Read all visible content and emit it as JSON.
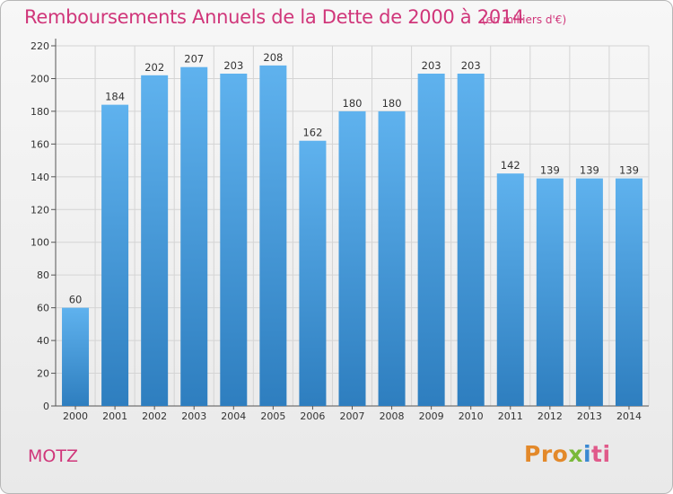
{
  "title": "Remboursements Annuels de la Dette de 2000 à 2014",
  "unit": "(en milliers d'€)",
  "commune": "MOTZ",
  "logo": {
    "p1": "Pro",
    "p2": "x",
    "p3": "i",
    "p4": "ti"
  },
  "colors": {
    "title": "#d0367a",
    "bar_top": "#5fb2ee",
    "bar_bottom": "#2e7ebf",
    "grid": "#d4d4d4"
  },
  "chart_data": {
    "type": "bar",
    "categories": [
      "2000",
      "2001",
      "2002",
      "2003",
      "2004",
      "2005",
      "2006",
      "2007",
      "2008",
      "2009",
      "2010",
      "2011",
      "2012",
      "2013",
      "2014"
    ],
    "values": [
      60,
      184,
      202,
      207,
      203,
      208,
      162,
      180,
      180,
      203,
      203,
      142,
      139,
      139,
      139
    ],
    "yticks": [
      0,
      20,
      40,
      60,
      80,
      100,
      120,
      140,
      160,
      180,
      200,
      220
    ],
    "ylim": [
      0,
      220
    ],
    "grid": true,
    "title": "Remboursements Annuels de la Dette de 2000 à 2014",
    "xlabel": "",
    "ylabel": ""
  }
}
